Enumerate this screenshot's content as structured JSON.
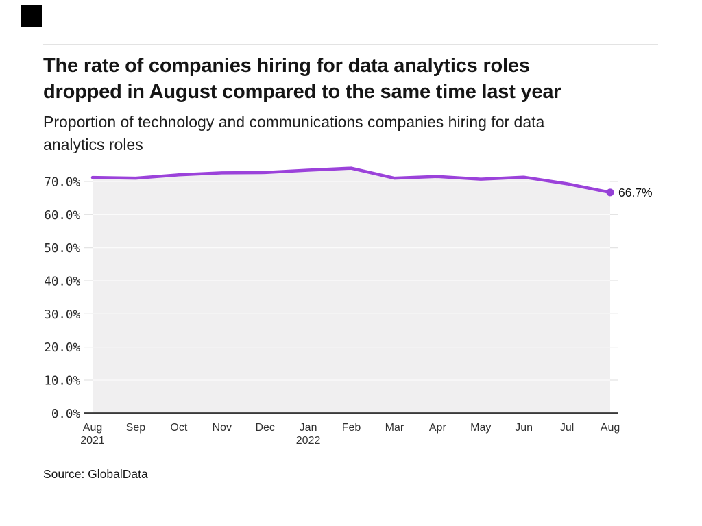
{
  "header": {
    "title_line1": "The rate of companies hiring for data analytics roles",
    "title_line2": "dropped in August compared to the same time last year",
    "subtitle_line1": "Proportion of technology and communications companies hiring for data",
    "subtitle_line2": "analytics roles"
  },
  "footer": {
    "source": "Source: GlobalData"
  },
  "chart_data": {
    "type": "area",
    "title": "The rate of companies hiring for data analytics roles dropped in August compared to the same time last year",
    "subtitle": "Proportion of technology and communications companies hiring for data analytics roles",
    "categories": [
      {
        "label": "Aug",
        "sublabel": "2021"
      },
      {
        "label": "Sep"
      },
      {
        "label": "Oct"
      },
      {
        "label": "Nov"
      },
      {
        "label": "Dec"
      },
      {
        "label": "Jan",
        "sublabel": "2022"
      },
      {
        "label": "Feb"
      },
      {
        "label": "Mar"
      },
      {
        "label": "Apr"
      },
      {
        "label": "May"
      },
      {
        "label": "Jun"
      },
      {
        "label": "Jul"
      },
      {
        "label": "Aug"
      }
    ],
    "values": [
      71.2,
      71.0,
      72.0,
      72.6,
      72.7,
      73.4,
      74.0,
      71.0,
      71.5,
      70.7,
      71.3,
      69.3,
      66.7
    ],
    "unit": "%",
    "end_label": "66.7%",
    "ytick_values": [
      0,
      10,
      20,
      30,
      40,
      50,
      60,
      70
    ],
    "ytick_labels": [
      "0.0%",
      "10.0%",
      "20.0%",
      "30.0%",
      "40.0%",
      "50.0%",
      "60.0%",
      "70.0%"
    ],
    "ylim": [
      0,
      80
    ],
    "gridlines": "horizontal",
    "legend": "none",
    "colors": {
      "line": "#9b42da",
      "marker": "#9440d6",
      "area_fill": "#f0eff0",
      "grid": "#e4e4e4",
      "grid_on_fill": "#fbfbfb",
      "axis": "#3a3a3a",
      "logo": "#000000",
      "divider": "#e3e3e3"
    }
  }
}
